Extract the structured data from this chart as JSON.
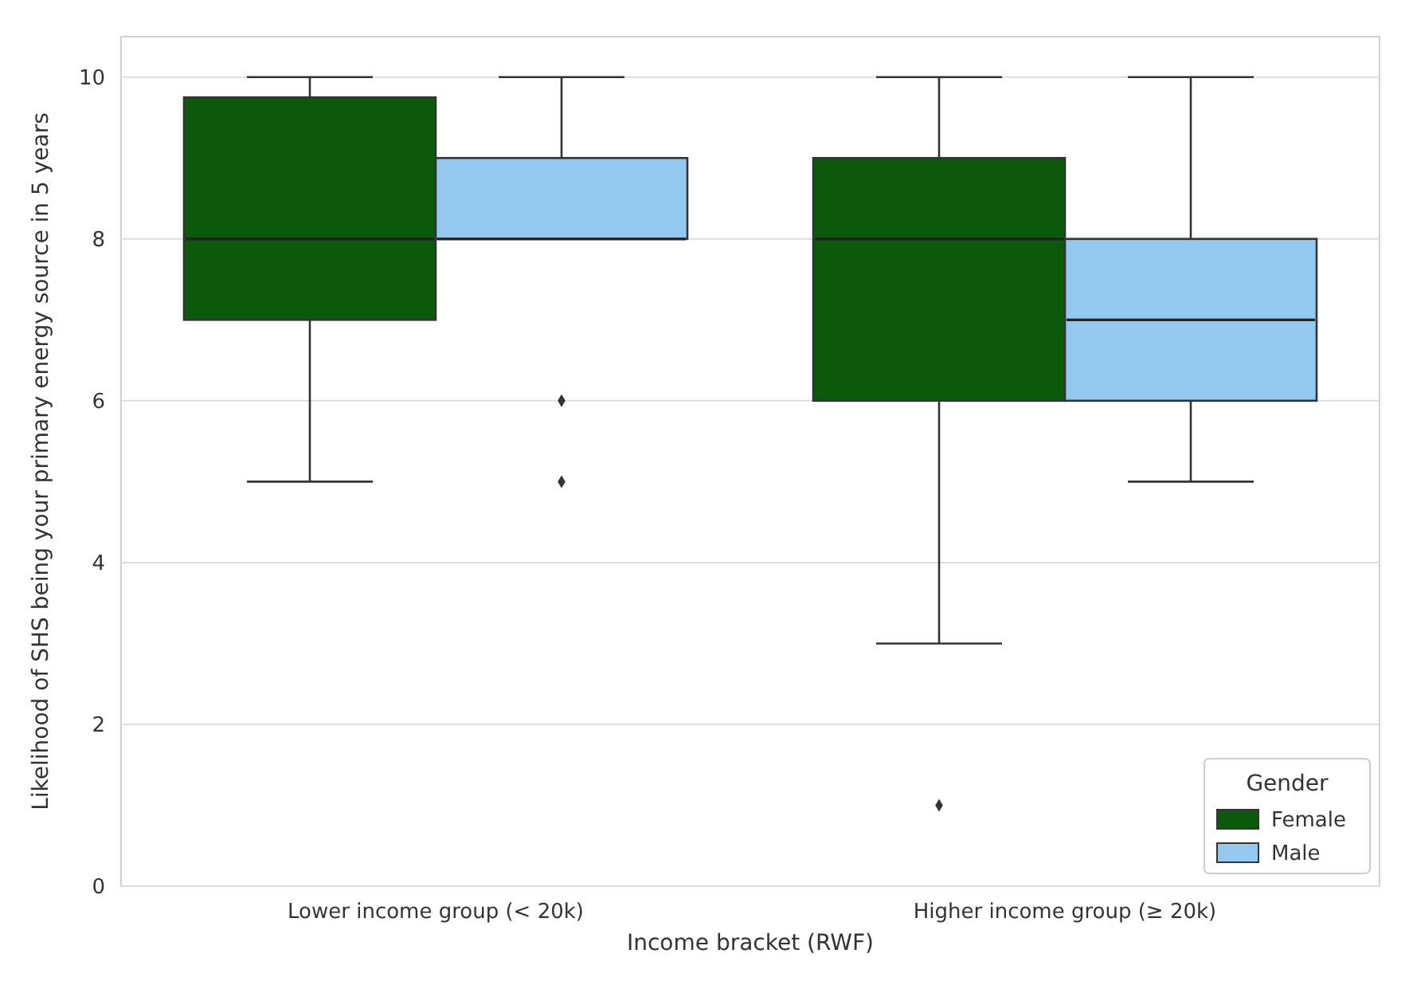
{
  "chart_data": {
    "type": "box",
    "xlabel": "Income bracket (RWF)",
    "ylabel": "Likelihood of SHS being your primary energy source in 5 years",
    "categories": [
      "Lower income group (< 20k)",
      "Higher income group (≥ 20k)"
    ],
    "series": [
      {
        "name": "Female",
        "color": "#0b5a0b",
        "boxes": [
          {
            "low": 5,
            "q1": 7,
            "median": 8,
            "q3": 9.75,
            "high": 10
          },
          {
            "low": 3,
            "q1": 6,
            "median": 8,
            "q3": 9,
            "high": 10,
            "outliers": [
              1
            ]
          }
        ]
      },
      {
        "name": "Male",
        "color": "#93c9ef",
        "boxes": [
          {
            "low": 8,
            "q1": 8,
            "median": 8,
            "q3": 9,
            "high": 10,
            "outliers": [
              6,
              5
            ]
          },
          {
            "low": 5,
            "q1": 6,
            "median": 7,
            "q3": 8,
            "high": 10
          }
        ]
      }
    ],
    "ylim": [
      0,
      10.5
    ],
    "yticks": [
      0,
      2,
      4,
      6,
      8,
      10
    ],
    "grid": "y",
    "legend": "bottom right",
    "legend_title": "Gender",
    "marker": "diamond"
  }
}
